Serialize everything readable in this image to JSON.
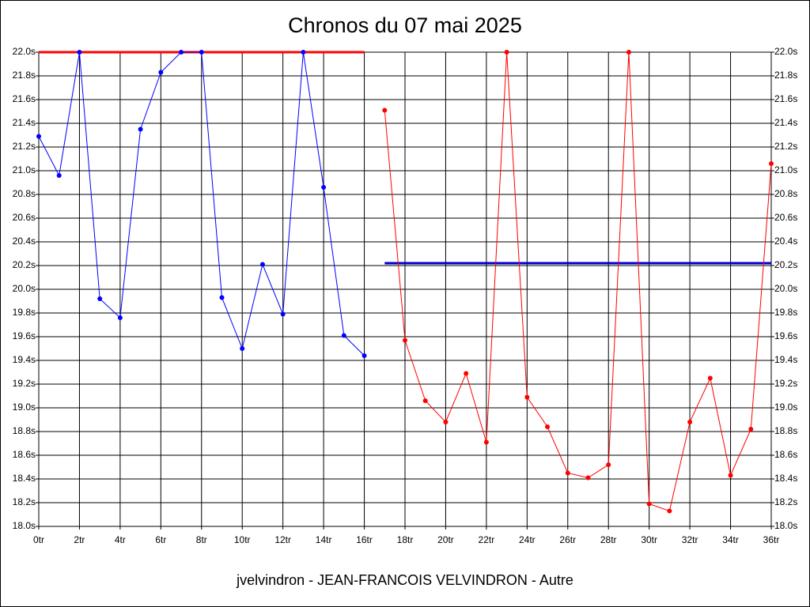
{
  "chart_data": {
    "type": "line",
    "title": "Chronos du 07 mai 2025",
    "footer": "jvelvindron - JEAN-FRANCOIS VELVINDRON - Autre",
    "xlim": [
      0,
      36
    ],
    "xticks": [
      {
        "value": 0,
        "label": "0tr"
      },
      {
        "value": 2,
        "label": "2tr"
      },
      {
        "value": 4,
        "label": "4tr"
      },
      {
        "value": 6,
        "label": "6tr"
      },
      {
        "value": 8,
        "label": "8tr"
      },
      {
        "value": 10,
        "label": "10tr"
      },
      {
        "value": 12,
        "label": "12tr"
      },
      {
        "value": 14,
        "label": "14tr"
      },
      {
        "value": 16,
        "label": "16tr"
      },
      {
        "value": 18,
        "label": "18tr"
      },
      {
        "value": 20,
        "label": "20tr"
      },
      {
        "value": 22,
        "label": "22tr"
      },
      {
        "value": 24,
        "label": "24tr"
      },
      {
        "value": 26,
        "label": "26tr"
      },
      {
        "value": 28,
        "label": "28tr"
      },
      {
        "value": 30,
        "label": "30tr"
      },
      {
        "value": 32,
        "label": "32tr"
      },
      {
        "value": 34,
        "label": "34tr"
      },
      {
        "value": 36,
        "label": "36tr"
      }
    ],
    "ylim": [
      18.0,
      22.0
    ],
    "yticks": [
      {
        "value": 18.0,
        "label": "18.0s"
      },
      {
        "value": 18.2,
        "label": "18.2s"
      },
      {
        "value": 18.4,
        "label": "18.4s"
      },
      {
        "value": 18.6,
        "label": "18.6s"
      },
      {
        "value": 18.8,
        "label": "18.8s"
      },
      {
        "value": 19.0,
        "label": "19.0s"
      },
      {
        "value": 19.2,
        "label": "19.2s"
      },
      {
        "value": 19.4,
        "label": "19.4s"
      },
      {
        "value": 19.6,
        "label": "19.6s"
      },
      {
        "value": 19.8,
        "label": "19.8s"
      },
      {
        "value": 20.0,
        "label": "20.0s"
      },
      {
        "value": 20.2,
        "label": "20.2s"
      },
      {
        "value": 20.4,
        "label": "20.4s"
      },
      {
        "value": 20.6,
        "label": "20.6s"
      },
      {
        "value": 20.8,
        "label": "20.8s"
      },
      {
        "value": 21.0,
        "label": "21.0s"
      },
      {
        "value": 21.2,
        "label": "21.2s"
      },
      {
        "value": 21.4,
        "label": "21.4s"
      },
      {
        "value": 21.6,
        "label": "21.6s"
      },
      {
        "value": 21.8,
        "label": "21.8s"
      },
      {
        "value": 22.0,
        "label": "22.0s"
      }
    ],
    "grid": true,
    "series": [
      {
        "color": "#0000ff",
        "x": [
          0,
          1,
          2,
          3,
          4,
          5,
          6,
          7,
          8,
          9,
          10,
          11,
          12,
          13,
          14,
          15,
          16
        ],
        "values": [
          21.29,
          20.96,
          22.0,
          19.92,
          19.76,
          21.35,
          21.83,
          22.0,
          22.0,
          19.93,
          19.5,
          20.21,
          19.79,
          22.0,
          20.86,
          19.61,
          19.44
        ]
      },
      {
        "color": "#ff0000",
        "x": [
          17,
          18,
          19,
          20,
          21,
          22,
          23,
          24,
          25,
          26,
          27,
          28,
          29,
          30,
          31,
          32,
          33,
          34,
          35,
          36
        ],
        "values": [
          21.51,
          19.57,
          19.06,
          18.88,
          19.29,
          18.71,
          22.0,
          19.09,
          18.84,
          18.45,
          18.41,
          18.52,
          22.0,
          18.19,
          18.13,
          18.88,
          19.25,
          18.43,
          18.82,
          21.06
        ]
      }
    ],
    "reference_lines": [
      {
        "value": 22.0,
        "from": 0,
        "to": 16,
        "color": "#ff0000"
      },
      {
        "value": 20.22,
        "from": 17,
        "to": 36,
        "color": "#0000cc"
      }
    ]
  }
}
